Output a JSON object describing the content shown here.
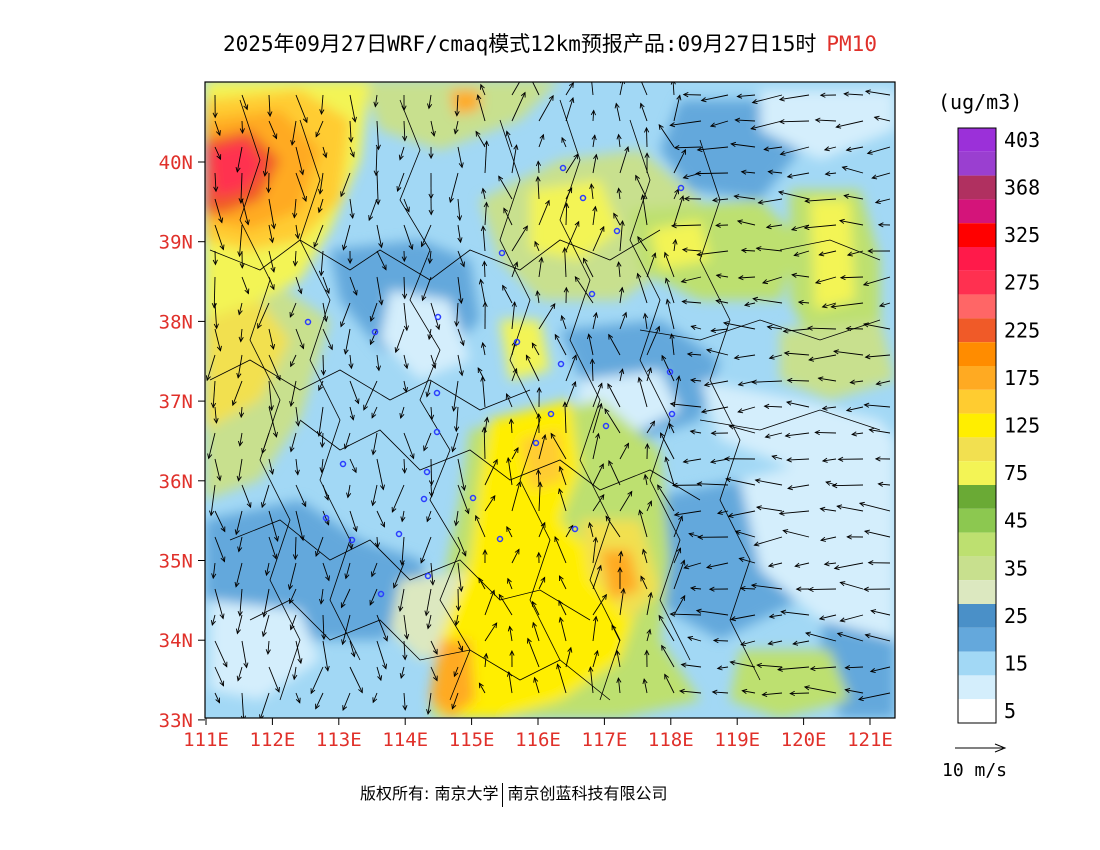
{
  "title": {
    "main": "2025年09月27日WRF/cmaq模式12km预报产品:09月27日15时",
    "variable": "PM10"
  },
  "colors": {
    "axis_label": "#e0302a",
    "station_marker": "#2a3cff",
    "boundary": "#000000"
  },
  "axes": {
    "lat_labels": [
      "40N",
      "39N",
      "38N",
      "37N",
      "36N",
      "35N",
      "34N",
      "33N"
    ],
    "lon_labels": [
      "111E",
      "112E",
      "113E",
      "114E",
      "115E",
      "116E",
      "117E",
      "118E",
      "119E",
      "120E",
      "121E"
    ]
  },
  "legend": {
    "unit": "(ug/m3)",
    "bins": [
      {
        "color": "#9b30d9",
        "label": "403"
      },
      {
        "color": "#9a3fd0",
        "label": ""
      },
      {
        "color": "#b03060",
        "label": "368"
      },
      {
        "color": "#d4147a",
        "label": ""
      },
      {
        "color": "#ff0000",
        "label": "325"
      },
      {
        "color": "#ff1a4a",
        "label": ""
      },
      {
        "color": "#ff3050",
        "label": "275"
      },
      {
        "color": "#ff6666",
        "label": ""
      },
      {
        "color": "#f05a28",
        "label": "225"
      },
      {
        "color": "#ff8c00",
        "label": ""
      },
      {
        "color": "#ffaa22",
        "label": "175"
      },
      {
        "color": "#ffcc30",
        "label": ""
      },
      {
        "color": "#ffee00",
        "label": "125"
      },
      {
        "color": "#f2e050",
        "label": ""
      },
      {
        "color": "#f3f455",
        "label": "75"
      },
      {
        "color": "#6aaa35",
        "label": ""
      },
      {
        "color": "#8cc850",
        "label": "45"
      },
      {
        "color": "#bde070",
        "label": ""
      },
      {
        "color": "#c8e08e",
        "label": "35"
      },
      {
        "color": "#dce8c0",
        "label": ""
      },
      {
        "color": "#4a90c8",
        "label": "25"
      },
      {
        "color": "#64a8dc",
        "label": ""
      },
      {
        "color": "#a2d8f5",
        "label": "15"
      },
      {
        "color": "#d4eefc",
        "label": ""
      },
      {
        "color": "#ffffff",
        "label": "5"
      }
    ]
  },
  "wind_legend": {
    "label": "10 m/s"
  },
  "copyright": {
    "owner": "版权所有: 南京大学",
    "company": "南京创蓝科技有限公司"
  }
}
